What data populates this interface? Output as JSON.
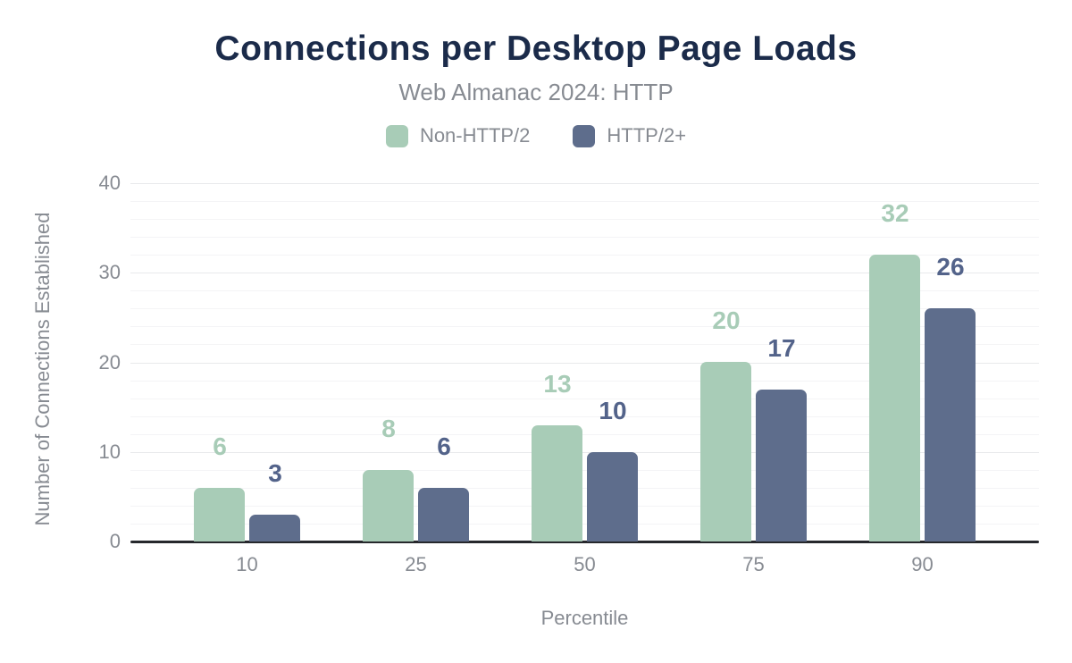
{
  "chart_data": {
    "type": "bar",
    "title": "Connections per Desktop Page Loads",
    "subtitle": "Web Almanac 2024: HTTP",
    "categories": [
      "10",
      "25",
      "50",
      "75",
      "90"
    ],
    "series": [
      {
        "name": "Non-HTTP/2",
        "values": [
          6,
          8,
          13,
          20,
          32
        ],
        "color": "#a8ccb7",
        "label_color": "#a8ccb7"
      },
      {
        "name": "HTTP/2+",
        "values": [
          3,
          6,
          10,
          17,
          26
        ],
        "color": "#5e6d8c",
        "label_color": "#53638a"
      }
    ],
    "xlabel": "Percentile",
    "ylabel": "Number of Connections Established",
    "ylim": [
      0,
      40
    ],
    "yticks": [
      0,
      10,
      20,
      30,
      40
    ],
    "minor_grid_step": 2,
    "major_grid_step": 10,
    "grid": true,
    "legend_position": "top",
    "bar_value_labels": true
  },
  "style": {
    "background": "#ffffff",
    "title_color": "#1b2b4a",
    "muted_text_color": "#878b92",
    "axis_line_color": "#26282c",
    "grid_minor_color": "#f4f4f6",
    "grid_major_color": "#e8e9eb"
  }
}
